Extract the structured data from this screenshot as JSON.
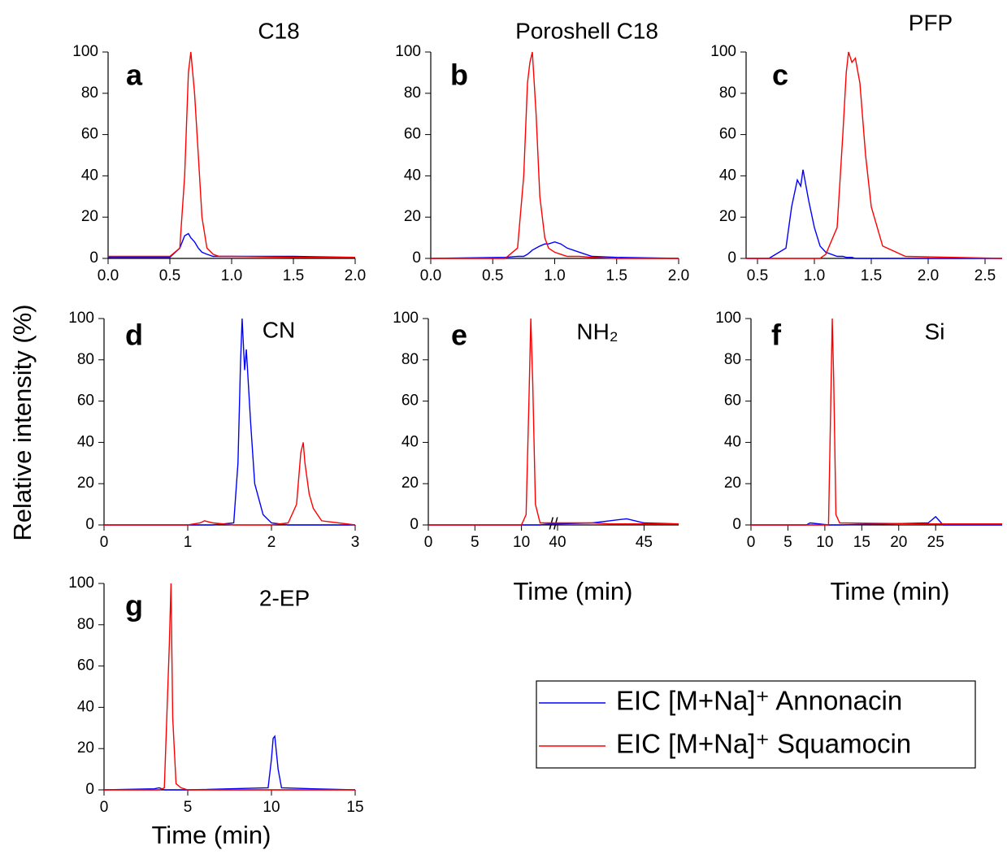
{
  "chart_data": [
    {
      "type": "line",
      "title": "C18",
      "panel_label": "a",
      "x": [
        0,
        0.5,
        0.58,
        0.62,
        0.65,
        0.67,
        0.7,
        0.73,
        0.76,
        0.8,
        0.85,
        0.9,
        1.0,
        1.5,
        2.0
      ],
      "series": [
        {
          "color": "#0000ff",
          "values": [
            0.5,
            0.5,
            5,
            11,
            12,
            10,
            8,
            5,
            3,
            2,
            1,
            1,
            1,
            1,
            0.5
          ]
        },
        {
          "color": "#ff0000",
          "values": [
            1,
            1,
            5,
            40,
            90,
            100,
            80,
            50,
            20,
            5,
            2,
            1,
            1,
            0.5,
            0.5
          ]
        }
      ],
      "xlim": [
        0,
        2
      ],
      "xticks": [
        {
          "value": 0,
          "label": "0.0"
        },
        0.5,
        {
          "value": 1,
          "label": "1.0"
        },
        1.5,
        {
          "value": 2,
          "label": "2.0"
        }
      ],
      "ylim": [
        0,
        100
      ],
      "yticks": [
        0,
        20,
        40,
        60,
        80,
        100
      ]
    },
    {
      "type": "line",
      "title": "Poroshell C18",
      "panel_label": "b",
      "x": [
        0,
        0.6,
        0.7,
        0.75,
        0.78,
        0.8,
        0.82,
        0.85,
        0.88,
        0.92,
        0.95,
        1.0,
        1.05,
        1.1,
        1.2,
        1.3,
        1.5,
        2.0
      ],
      "series": [
        {
          "color": "#0000ff",
          "values": [
            0,
            0.5,
            1,
            1,
            2,
            3,
            4,
            5,
            6,
            7,
            7,
            8,
            7,
            5,
            3,
            1,
            0.5,
            0
          ]
        },
        {
          "color": "#ff0000",
          "values": [
            0,
            0,
            5,
            40,
            85,
            95,
            100,
            70,
            30,
            10,
            5,
            3,
            2,
            1,
            1,
            0.5,
            0,
            0
          ]
        }
      ],
      "xlim": [
        0,
        2
      ],
      "xticks": [
        {
          "value": 0,
          "label": "0.0"
        },
        0.5,
        {
          "value": 1,
          "label": "1.0"
        },
        1.5,
        {
          "value": 2,
          "label": "2.0"
        }
      ],
      "ylim": [
        0,
        100
      ],
      "yticks": [
        0,
        20,
        40,
        60,
        80,
        100
      ]
    },
    {
      "type": "line",
      "title": "PFP",
      "panel_label": "c",
      "x": [
        0.4,
        0.6,
        0.75,
        0.8,
        0.85,
        0.88,
        0.9,
        0.95,
        1.0,
        1.05,
        1.1,
        1.2,
        1.25,
        1.28,
        1.3,
        1.33,
        1.36,
        1.4,
        1.45,
        1.5,
        1.6,
        1.8,
        2.65
      ],
      "series": [
        {
          "color": "#0000ff",
          "values": [
            0,
            0,
            5,
            25,
            38,
            35,
            43,
            28,
            15,
            6,
            3,
            1,
            1,
            0.5,
            0.5,
            0.5,
            0,
            0,
            0,
            0,
            0,
            0,
            0
          ]
        },
        {
          "color": "#ff0000",
          "values": [
            0,
            0,
            0,
            0,
            0,
            0,
            0,
            0,
            0,
            0,
            2,
            15,
            60,
            90,
            100,
            95,
            97,
            85,
            50,
            25,
            6,
            1,
            0
          ]
        }
      ],
      "xlim": [
        0.4,
        2.65
      ],
      "xticks": [
        0.5,
        {
          "value": 1,
          "label": "1.0"
        },
        1.5,
        {
          "value": 2,
          "label": "2.0"
        },
        2.5
      ],
      "ylim": [
        0,
        100
      ],
      "yticks": [
        0,
        20,
        40,
        60,
        80,
        100
      ]
    },
    {
      "type": "line",
      "title": "CN",
      "panel_label": "d",
      "ylabel": "Relative intensity (%)",
      "x": [
        0,
        1,
        1.15,
        1.2,
        1.3,
        1.55,
        1.6,
        1.63,
        1.65,
        1.68,
        1.7,
        1.75,
        1.8,
        1.9,
        2.0,
        2.2,
        2.3,
        2.35,
        2.38,
        2.4,
        2.45,
        2.5,
        2.6,
        3
      ],
      "series": [
        {
          "color": "#0000ff",
          "values": [
            0,
            0,
            0,
            0,
            0,
            1,
            30,
            78,
            100,
            75,
            85,
            50,
            20,
            5,
            1,
            0,
            0,
            0,
            0,
            0,
            0,
            0,
            0,
            0
          ]
        },
        {
          "color": "#ff0000",
          "values": [
            0,
            0,
            1,
            2,
            1,
            0,
            0,
            0,
            0,
            0,
            0,
            0,
            0,
            0,
            0,
            1,
            10,
            35,
            40,
            30,
            15,
            8,
            2,
            0
          ]
        }
      ],
      "xlim": [
        0,
        3
      ],
      "xticks": [
        0,
        1,
        2,
        3
      ],
      "ylim": [
        0,
        100
      ],
      "yticks": [
        0,
        20,
        40,
        60,
        80,
        100
      ]
    },
    {
      "type": "line",
      "title": "NH₂",
      "panel_label": "e",
      "xlabel": "Time (min)",
      "x": [
        0,
        10,
        10.5,
        10.8,
        11,
        11.2,
        11.5,
        12,
        13,
        40,
        42,
        43,
        44,
        45,
        47
      ],
      "series": [
        {
          "color": "#0000ff",
          "values": [
            0,
            0,
            0,
            0,
            0,
            0,
            0,
            0,
            0.5,
            0.5,
            1,
            2,
            3,
            1,
            0.5
          ]
        },
        {
          "color": "#ff0000",
          "values": [
            0,
            0,
            5,
            60,
            100,
            70,
            10,
            1,
            1,
            1,
            1,
            0.5,
            0.5,
            0.5,
            0.5
          ]
        }
      ],
      "xlim": [
        0,
        47
      ],
      "x_break": [
        13,
        40
      ],
      "xticks": [
        0,
        5,
        10,
        40,
        45
      ],
      "ylim": [
        0,
        100
      ],
      "yticks": [
        0,
        20,
        40,
        60,
        80,
        100
      ]
    },
    {
      "type": "line",
      "title": "Si",
      "panel_label": "f",
      "xlabel": "Time (min)",
      "x": [
        0,
        7.5,
        8,
        10.5,
        10.8,
        11,
        11.2,
        11.5,
        12,
        24,
        25,
        25.5,
        26,
        34
      ],
      "series": [
        {
          "color": "#0000ff",
          "values": [
            0,
            0,
            1,
            0,
            0,
            0,
            0,
            0,
            0,
            1,
            4,
            2,
            0,
            0
          ]
        },
        {
          "color": "#ff0000",
          "values": [
            0,
            0,
            0,
            0,
            60,
            100,
            70,
            5,
            1,
            0.5,
            0.5,
            0.5,
            0.5,
            0.5
          ]
        }
      ],
      "xlim": [
        0,
        34
      ],
      "xticks": [
        0,
        5,
        10,
        15,
        20,
        25
      ],
      "ylim": [
        0,
        100
      ],
      "yticks": [
        0,
        20,
        40,
        60,
        80,
        100
      ]
    },
    {
      "type": "line",
      "title": "2-EP",
      "panel_label": "g",
      "xlabel": "Time (min)",
      "x": [
        0,
        3,
        3.3,
        3.6,
        3.9,
        4.0,
        4.1,
        4.3,
        4.6,
        5,
        9.8,
        10,
        10.1,
        10.2,
        10.4,
        10.6,
        12.5,
        15
      ],
      "series": [
        {
          "color": "#0000ff",
          "values": [
            0,
            0.5,
            1,
            0,
            0,
            0,
            0,
            0,
            0,
            0,
            1,
            15,
            25,
            26,
            10,
            1,
            0.5,
            0
          ]
        },
        {
          "color": "#ff0000",
          "values": [
            0,
            0,
            0,
            1,
            70,
            100,
            35,
            3,
            1,
            0,
            0,
            0,
            0,
            0,
            0,
            0,
            0,
            0
          ]
        }
      ],
      "xlim": [
        0,
        15
      ],
      "xticks": [
        0,
        5,
        10,
        15
      ],
      "ylim": [
        0,
        100
      ],
      "yticks": [
        0,
        20,
        40,
        60,
        80,
        100
      ]
    }
  ],
  "legend": {
    "entries": [
      {
        "name": "EIC [M+Na]⁺ Annonacin",
        "color": "#0000ff"
      },
      {
        "name": "EIC [M+Na]⁺ Squamocin",
        "color": "#ff0000"
      }
    ]
  }
}
